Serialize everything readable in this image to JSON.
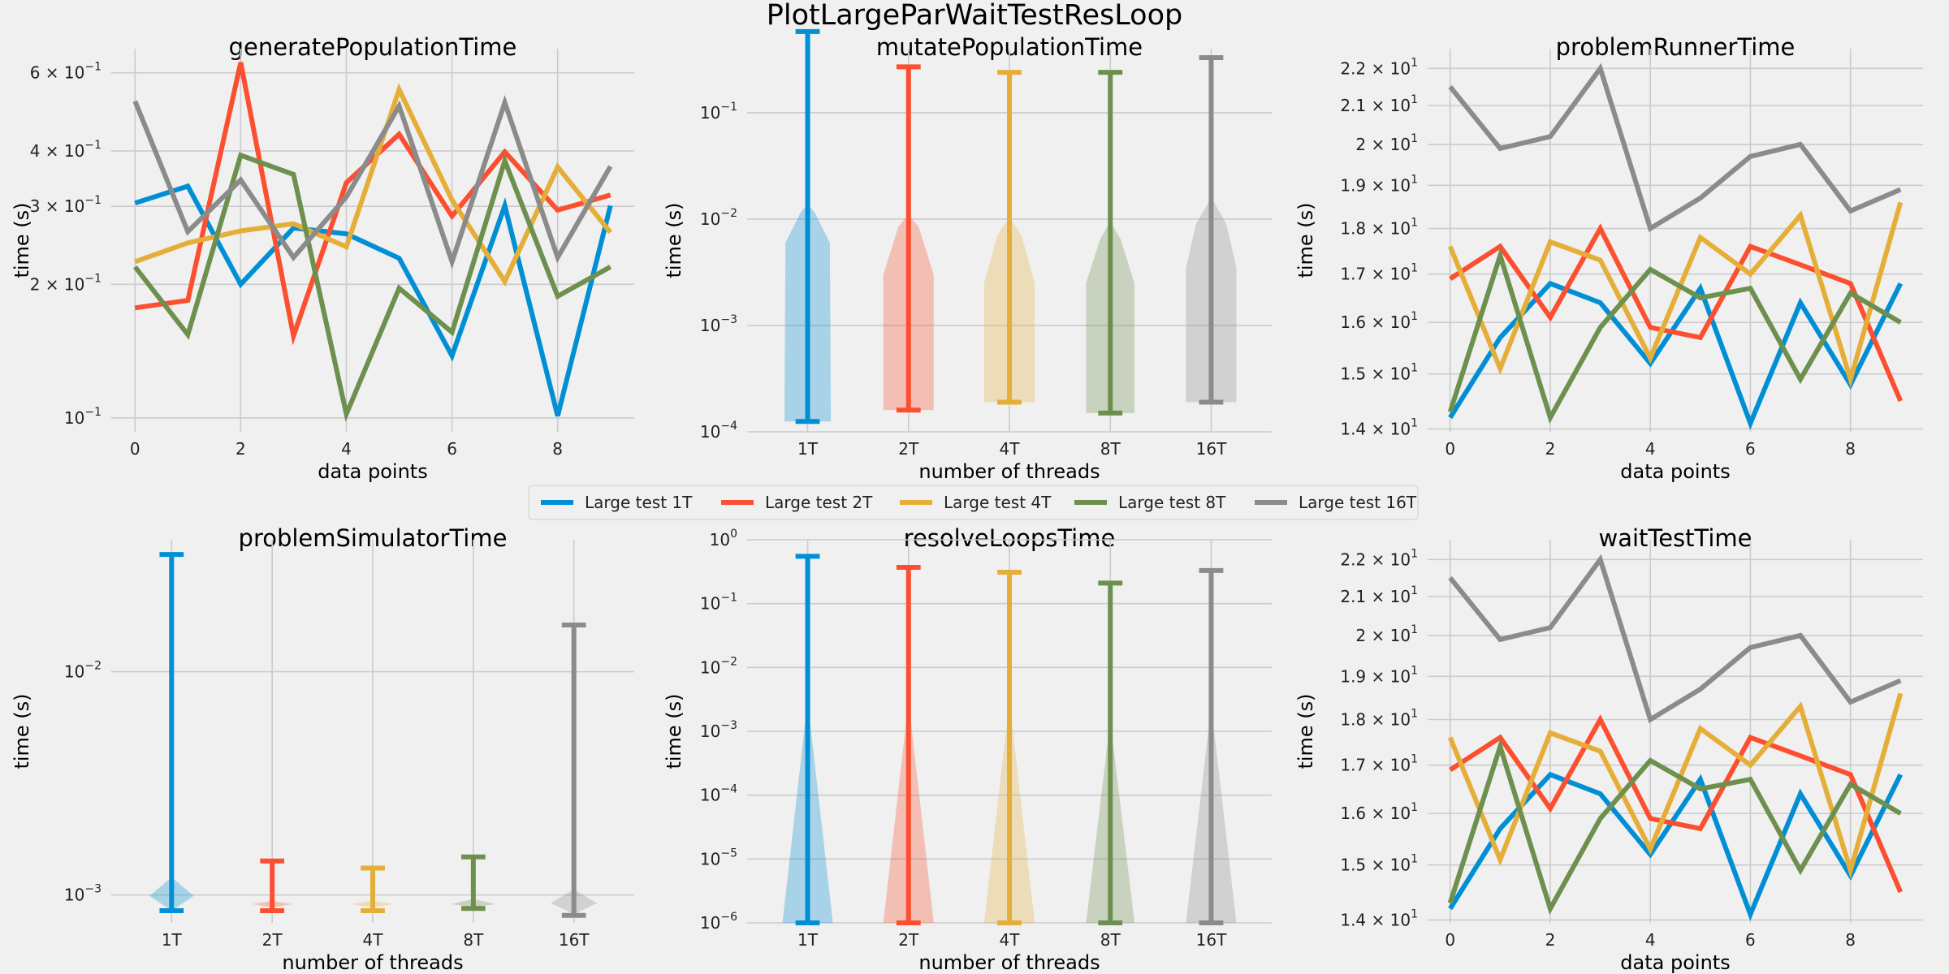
{
  "figure": {
    "title": "PlotLargeParWaitTestResLoop"
  },
  "colors": {
    "T1": "#008fd5",
    "T2": "#fc4f30",
    "T4": "#e5ae38",
    "T8": "#6d904f",
    "T16": "#8b8b8b"
  },
  "legend": {
    "placement": "center",
    "entries": [
      {
        "label": "Large test 1T",
        "key": "T1"
      },
      {
        "label": "Large test 2T",
        "key": "T2"
      },
      {
        "label": "Large test 4T",
        "key": "T4"
      },
      {
        "label": "Large test 8T",
        "key": "T8"
      },
      {
        "label": "Large test 16T",
        "key": "T16"
      }
    ]
  },
  "chart_data": [
    {
      "type": "line",
      "title": "generatePopulationTime",
      "xlabel": "data points",
      "ylabel": "time (s)",
      "yscale": "log",
      "xlim": [
        -0.45,
        9.45
      ],
      "ylim": [
        0.093,
        0.68
      ],
      "xticks": [
        0,
        2,
        4,
        6,
        8
      ],
      "yticks": [
        {
          "v": 0.1,
          "b": "10",
          "e": "−1"
        },
        {
          "v": 0.2,
          "b": "2 × 10",
          "e": "−1"
        },
        {
          "v": 0.3,
          "b": "3 × 10",
          "e": "−1"
        },
        {
          "v": 0.4,
          "b": "4 × 10",
          "e": "−1"
        },
        {
          "v": 0.6,
          "b": "6 × 10",
          "e": "−1"
        }
      ],
      "grid": true,
      "x": [
        0,
        1,
        2,
        3,
        4,
        5,
        6,
        7,
        8,
        9
      ],
      "series": [
        {
          "key": "T1",
          "values": [
            0.305,
            0.333,
            0.2,
            0.268,
            0.26,
            0.229,
            0.138,
            0.301,
            0.101,
            0.301
          ]
        },
        {
          "key": "T2",
          "values": [
            0.177,
            0.184,
            0.633,
            0.153,
            0.339,
            0.436,
            0.285,
            0.398,
            0.294,
            0.318
          ]
        },
        {
          "key": "T4",
          "values": [
            0.225,
            0.248,
            0.264,
            0.274,
            0.243,
            0.55,
            0.31,
            0.203,
            0.368,
            0.262
          ]
        },
        {
          "key": "T8",
          "values": [
            0.219,
            0.154,
            0.391,
            0.354,
            0.102,
            0.196,
            0.156,
            0.38,
            0.188,
            0.219
          ]
        },
        {
          "key": "T16",
          "values": [
            0.518,
            0.263,
            0.344,
            0.23,
            0.315,
            0.505,
            0.225,
            0.514,
            0.23,
            0.369
          ]
        }
      ]
    },
    {
      "type": "violin",
      "title": "mutatePopulationTime",
      "xlabel": "number of threads",
      "ylabel": "time (s)",
      "yscale": "log",
      "xlim": [
        0.4,
        5.6
      ],
      "ylim": [
        0.0001,
        0.4
      ],
      "categories": [
        "1T",
        "2T",
        "4T",
        "8T",
        "16T"
      ],
      "yticks": [
        {
          "v": 0.0001,
          "b": "10",
          "e": "−4"
        },
        {
          "v": 0.001,
          "b": "10",
          "e": "−3"
        },
        {
          "v": 0.01,
          "b": "10",
          "e": "−2"
        },
        {
          "v": 0.1,
          "b": "10",
          "e": "−1"
        }
      ],
      "grid": true,
      "series": [
        {
          "key": "T1",
          "min": 0.000125,
          "max": 0.58,
          "profile": [
            [
              0.000125,
              0.23
            ],
            [
              0.006,
              0.22
            ],
            [
              0.0115,
              0.07
            ],
            [
              0.014,
              0.0
            ]
          ]
        },
        {
          "key": "T2",
          "min": 0.00016,
          "max": 0.27,
          "profile": [
            [
              0.00016,
              0.25
            ],
            [
              0.003,
              0.25
            ],
            [
              0.0085,
              0.1
            ],
            [
              0.011,
              0.0
            ]
          ]
        },
        {
          "key": "T4",
          "min": 0.00019,
          "max": 0.24,
          "profile": [
            [
              0.00019,
              0.25
            ],
            [
              0.0025,
              0.25
            ],
            [
              0.007,
              0.12
            ],
            [
              0.0105,
              0.0
            ]
          ]
        },
        {
          "key": "T8",
          "min": 0.00015,
          "max": 0.24,
          "profile": [
            [
              0.00015,
              0.24
            ],
            [
              0.0025,
              0.24
            ],
            [
              0.0065,
              0.1
            ],
            [
              0.0095,
              0.0
            ]
          ]
        },
        {
          "key": "T16",
          "min": 0.00019,
          "max": 0.33,
          "profile": [
            [
              0.00019,
              0.25
            ],
            [
              0.0035,
              0.25
            ],
            [
              0.009,
              0.15
            ],
            [
              0.016,
              0.0
            ]
          ]
        }
      ]
    },
    {
      "type": "line",
      "title": "problemRunnerTime",
      "xlabel": "data points",
      "ylabel": "time (s)",
      "yscale": "log",
      "xlim": [
        -0.45,
        9.45
      ],
      "ylim": [
        13.95,
        22.55
      ],
      "xticks": [
        0,
        2,
        4,
        6,
        8
      ],
      "yticks": [
        {
          "v": 14,
          "b": "1.4 × 10",
          "e": "1"
        },
        {
          "v": 15,
          "b": "1.5 × 10",
          "e": "1"
        },
        {
          "v": 16,
          "b": "1.6 × 10",
          "e": "1"
        },
        {
          "v": 17,
          "b": "1.7 × 10",
          "e": "1"
        },
        {
          "v": 18,
          "b": "1.8 × 10",
          "e": "1"
        },
        {
          "v": 19,
          "b": "1.9 × 10",
          "e": "1"
        },
        {
          "v": 20,
          "b": "2 × 10",
          "e": "1"
        },
        {
          "v": 21,
          "b": "2.1 × 10",
          "e": "1"
        },
        {
          "v": 22,
          "b": "2.2 × 10",
          "e": "1"
        }
      ],
      "grid": true,
      "x": [
        0,
        1,
        2,
        3,
        4,
        5,
        6,
        7,
        8,
        9
      ],
      "series": [
        {
          "key": "T1",
          "values": [
            14.2,
            15.7,
            16.8,
            16.4,
            15.2,
            16.7,
            14.1,
            16.4,
            14.8,
            16.8
          ]
        },
        {
          "key": "T2",
          "values": [
            16.9,
            17.6,
            16.1,
            18.0,
            15.9,
            15.7,
            17.6,
            17.2,
            16.8,
            14.5
          ]
        },
        {
          "key": "T4",
          "values": [
            17.6,
            15.1,
            17.7,
            17.3,
            15.3,
            17.8,
            17.0,
            18.3,
            14.9,
            18.6
          ]
        },
        {
          "key": "T8",
          "values": [
            14.3,
            17.4,
            14.2,
            15.9,
            17.1,
            16.5,
            16.7,
            14.9,
            16.6,
            16.0
          ]
        },
        {
          "key": "T16",
          "values": [
            21.5,
            19.9,
            20.2,
            22.0,
            18.0,
            18.7,
            19.7,
            20.0,
            18.4,
            18.9
          ]
        }
      ]
    },
    {
      "type": "violin",
      "title": "problemSimulatorTime",
      "xlabel": "number of threads",
      "ylabel": "time (s)",
      "yscale": "log",
      "xlim": [
        0.4,
        5.6
      ],
      "ylim": [
        0.00075,
        0.039
      ],
      "categories": [
        "1T",
        "2T",
        "4T",
        "8T",
        "16T"
      ],
      "yticks": [
        {
          "v": 0.001,
          "b": "10",
          "e": "−3"
        },
        {
          "v": 0.01,
          "b": "10",
          "e": "−2"
        }
      ],
      "grid": true,
      "series": [
        {
          "key": "T1",
          "min": 0.00085,
          "max": 0.0335,
          "profile": [
            [
              0.00085,
              0.0
            ],
            [
              0.00099,
              0.22
            ],
            [
              0.0012,
              0.0
            ]
          ]
        },
        {
          "key": "T2",
          "min": 0.00085,
          "max": 0.00142,
          "profile": [
            [
              0.00088,
              0.0
            ],
            [
              0.00091,
              0.2
            ],
            [
              0.00094,
              0.0
            ]
          ]
        },
        {
          "key": "T4",
          "min": 0.00085,
          "max": 0.00132,
          "profile": [
            [
              0.00088,
              0.0
            ],
            [
              0.00091,
              0.22
            ],
            [
              0.00094,
              0.0
            ]
          ]
        },
        {
          "key": "T8",
          "min": 0.00087,
          "max": 0.00148,
          "profile": [
            [
              0.00088,
              0.0
            ],
            [
              0.00091,
              0.22
            ],
            [
              0.00096,
              0.0
            ]
          ]
        },
        {
          "key": "T16",
          "min": 0.00081,
          "max": 0.0162,
          "profile": [
            [
              0.00082,
              0.0
            ],
            [
              0.00092,
              0.23
            ],
            [
              0.00106,
              0.0
            ]
          ]
        }
      ]
    },
    {
      "type": "violin",
      "title": "resolveLoopsTime",
      "xlabel": "number of threads",
      "ylabel": "time (s)",
      "yscale": "log",
      "xlim": [
        0.4,
        5.6
      ],
      "ylim": [
        1e-06,
        1.0
      ],
      "categories": [
        "1T",
        "2T",
        "4T",
        "8T",
        "16T"
      ],
      "yticks": [
        {
          "v": 1e-06,
          "b": "10",
          "e": "−6"
        },
        {
          "v": 1e-05,
          "b": "10",
          "e": "−5"
        },
        {
          "v": 0.0001,
          "b": "10",
          "e": "−4"
        },
        {
          "v": 0.001,
          "b": "10",
          "e": "−3"
        },
        {
          "v": 0.01,
          "b": "10",
          "e": "−2"
        },
        {
          "v": 0.1,
          "b": "10",
          "e": "−1"
        },
        {
          "v": 1,
          "b": "10",
          "e": "0"
        }
      ],
      "grid": true,
      "series": [
        {
          "key": "T1",
          "min": 1e-06,
          "max": 0.55,
          "profile": [
            [
              1e-06,
              0.25
            ],
            [
              0.003,
              0.0
            ]
          ]
        },
        {
          "key": "T2",
          "min": 1e-06,
          "max": 0.37,
          "profile": [
            [
              1e-06,
              0.25
            ],
            [
              0.003,
              0.0
            ]
          ]
        },
        {
          "key": "T4",
          "min": 1e-06,
          "max": 0.31,
          "profile": [
            [
              1e-06,
              0.25
            ],
            [
              0.003,
              0.0
            ]
          ]
        },
        {
          "key": "T8",
          "min": 1e-06,
          "max": 0.21,
          "profile": [
            [
              1e-06,
              0.24
            ],
            [
              0.0015,
              0.0
            ]
          ]
        },
        {
          "key": "T16",
          "min": 1e-06,
          "max": 0.33,
          "profile": [
            [
              1e-06,
              0.25
            ],
            [
              0.0025,
              0.0
            ]
          ]
        }
      ]
    },
    {
      "type": "line",
      "title": "waitTestTime",
      "xlabel": "data points",
      "ylabel": "time (s)",
      "yscale": "log",
      "xlim": [
        -0.45,
        9.45
      ],
      "ylim": [
        13.95,
        22.55
      ],
      "xticks": [
        0,
        2,
        4,
        6,
        8
      ],
      "yticks": [
        {
          "v": 14,
          "b": "1.4 × 10",
          "e": "1"
        },
        {
          "v": 15,
          "b": "1.5 × 10",
          "e": "1"
        },
        {
          "v": 16,
          "b": "1.6 × 10",
          "e": "1"
        },
        {
          "v": 17,
          "b": "1.7 × 10",
          "e": "1"
        },
        {
          "v": 18,
          "b": "1.8 × 10",
          "e": "1"
        },
        {
          "v": 19,
          "b": "1.9 × 10",
          "e": "1"
        },
        {
          "v": 20,
          "b": "2 × 10",
          "e": "1"
        },
        {
          "v": 21,
          "b": "2.1 × 10",
          "e": "1"
        },
        {
          "v": 22,
          "b": "2.2 × 10",
          "e": "1"
        }
      ],
      "grid": true,
      "x": [
        0,
        1,
        2,
        3,
        4,
        5,
        6,
        7,
        8,
        9
      ],
      "series": [
        {
          "key": "T1",
          "values": [
            14.2,
            15.7,
            16.8,
            16.4,
            15.2,
            16.7,
            14.1,
            16.4,
            14.8,
            16.8
          ]
        },
        {
          "key": "T2",
          "values": [
            16.9,
            17.6,
            16.1,
            18.0,
            15.9,
            15.7,
            17.6,
            17.2,
            16.8,
            14.5
          ]
        },
        {
          "key": "T4",
          "values": [
            17.6,
            15.1,
            17.7,
            17.3,
            15.3,
            17.8,
            17.0,
            18.3,
            14.9,
            18.6
          ]
        },
        {
          "key": "T8",
          "values": [
            14.3,
            17.4,
            14.2,
            15.9,
            17.1,
            16.5,
            16.7,
            14.9,
            16.6,
            16.0
          ]
        },
        {
          "key": "T16",
          "values": [
            21.5,
            19.9,
            20.2,
            22.0,
            18.0,
            18.7,
            19.7,
            20.0,
            18.4,
            18.9
          ]
        }
      ]
    }
  ]
}
